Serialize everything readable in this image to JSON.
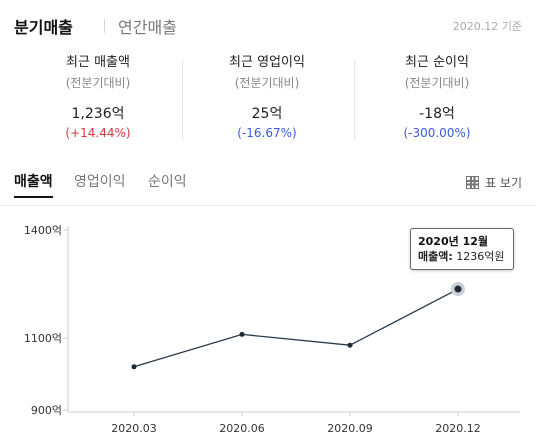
{
  "header": {
    "tab_quarterly": "분기매출",
    "tab_annual": "연간매출",
    "basis": "2020.12 기준"
  },
  "summary": [
    {
      "label": "최근 매출액",
      "sub": "(전분기대비)",
      "value": "1,236억",
      "change": "(+14.44%)",
      "direction": "up"
    },
    {
      "label": "최근 영업이익",
      "sub": "(전분기대비)",
      "value": "25억",
      "change": "(-16.67%)",
      "direction": "down"
    },
    {
      "label": "최근 순이익",
      "sub": "(전분기대비)",
      "value": "-18억",
      "change": "(-300.00%)",
      "direction": "down"
    }
  ],
  "metric_tabs": [
    "매출액",
    "영업이익",
    "순이익"
  ],
  "table_toggle": "표 보기",
  "colors": {
    "up": "#d9383a",
    "down": "#3a5ad9",
    "line": "#2b3a4a"
  },
  "tooltip": {
    "title": "2020년 12월",
    "label": "매출액:",
    "value": "1236억원"
  },
  "chart_data": {
    "type": "line",
    "categories": [
      "2020.03",
      "2020.06",
      "2020.09",
      "2020.12"
    ],
    "series": [
      {
        "values": [
          1020,
          1110,
          1080,
          1236
        ]
      }
    ],
    "y_ticks": [
      "1400억",
      "1100억",
      "900억"
    ],
    "y_tick_values": [
      1400,
      1100,
      900
    ],
    "ylim": [
      900,
      1400
    ],
    "highlight_index": 3,
    "grid": false
  }
}
